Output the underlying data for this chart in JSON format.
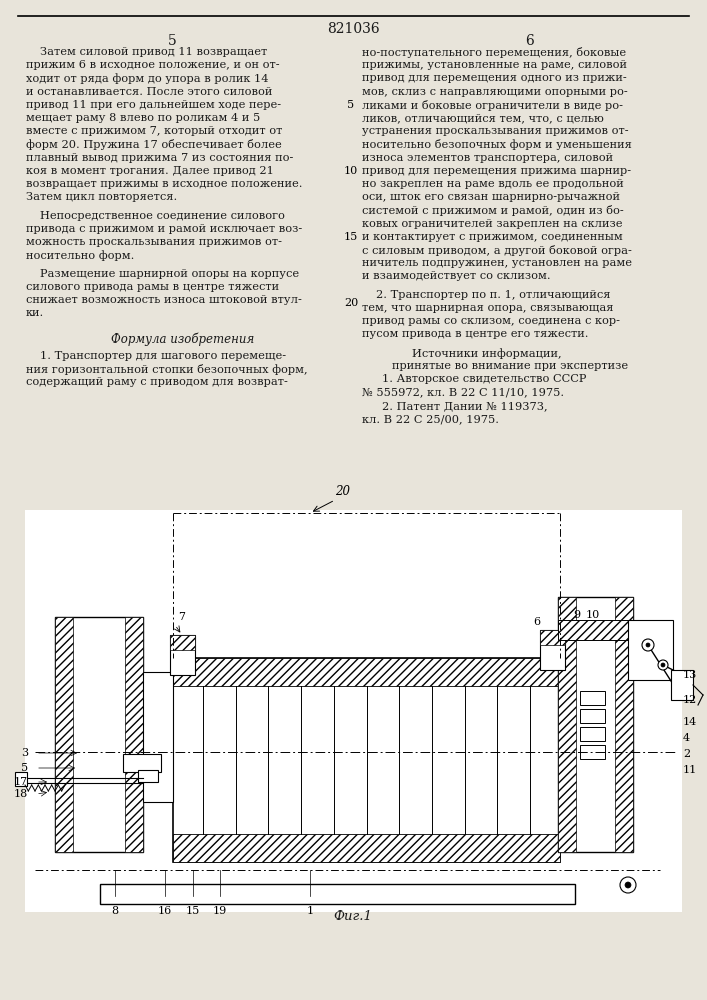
{
  "patent_number": "821036",
  "col_left_num": "5",
  "col_right_num": "6",
  "line_numbers": [
    "5",
    "10",
    "15",
    "20"
  ],
  "figure_label": "Фиг.1",
  "bg_color": "#e8e4da",
  "text_color": "#1a1a1a"
}
